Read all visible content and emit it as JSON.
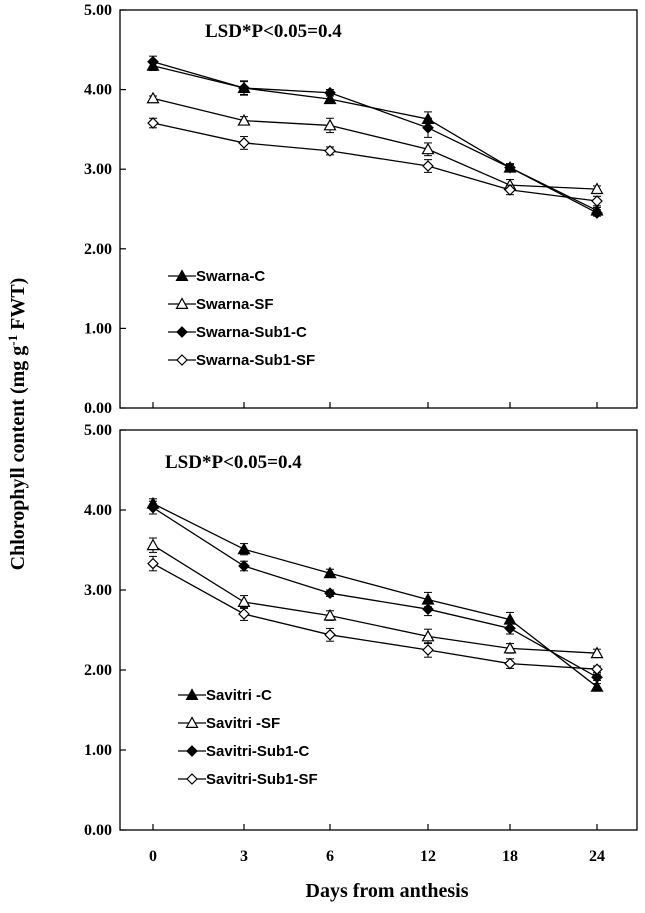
{
  "chart_data": {
    "type": "line",
    "ylabel": "Chlorophyll content (mg g-1 FWT)",
    "ylabel_parts": [
      "Chlorophyll content (mg g",
      "-1",
      " FWT)"
    ],
    "xlabel": "Days from anthesis",
    "x": [
      "0",
      "3",
      "6",
      "12",
      "18",
      "24"
    ],
    "yticks": [
      "0.00",
      "1.00",
      "2.00",
      "3.00",
      "4.00",
      "5.00"
    ],
    "ylim": [
      0,
      5
    ],
    "panels": [
      {
        "annotation": "LSD*P<0.05=0.4",
        "series": [
          {
            "name": "Swarna-C",
            "marker": "triangle-filled",
            "values": [
              4.3,
              4.02,
              3.88,
              3.63,
              3.02,
              2.48
            ],
            "errors": [
              0.06,
              0.09,
              0.04,
              0.09,
              0.04,
              0.04
            ]
          },
          {
            "name": "Swarna-SF",
            "marker": "triangle-open",
            "values": [
              3.89,
              3.61,
              3.55,
              3.25,
              2.8,
              2.75
            ],
            "errors": [
              0.03,
              0.05,
              0.09,
              0.08,
              0.07,
              0.04
            ]
          },
          {
            "name": "Swarna-Sub1-C",
            "marker": "diamond-filled",
            "values": [
              4.35,
              4.02,
              3.96,
              3.52,
              3.02,
              2.45
            ],
            "errors": [
              0.07,
              0.08,
              0.04,
              0.12,
              0.05,
              0.04
            ]
          },
          {
            "name": "Swarna-Sub1-SF",
            "marker": "diamond-open",
            "values": [
              3.58,
              3.33,
              3.23,
              3.04,
              2.74,
              2.6
            ],
            "errors": [
              0.06,
              0.08,
              0.05,
              0.08,
              0.06,
              0.06
            ]
          }
        ]
      },
      {
        "annotation": "LSD*P<0.05=0.4",
        "series": [
          {
            "name": "Savitri -C",
            "marker": "triangle-filled",
            "values": [
              4.08,
              3.51,
              3.21,
              2.88,
              2.63,
              1.79
            ],
            "errors": [
              0.06,
              0.07,
              0.05,
              0.09,
              0.09,
              0.04
            ]
          },
          {
            "name": "Savitri -SF",
            "marker": "triangle-open",
            "values": [
              3.56,
              2.85,
              2.68,
              2.42,
              2.27,
              2.21
            ],
            "errors": [
              0.09,
              0.08,
              0.06,
              0.09,
              0.06,
              0.05
            ]
          },
          {
            "name": "Savitri-Sub1-C",
            "marker": "diamond-filled",
            "values": [
              4.03,
              3.3,
              2.96,
              2.76,
              2.52,
              1.91
            ],
            "errors": [
              0.08,
              0.06,
              0.04,
              0.08,
              0.07,
              0.04
            ]
          },
          {
            "name": "Savitri-Sub1-SF",
            "marker": "diamond-open",
            "values": [
              3.33,
              2.7,
              2.44,
              2.25,
              2.08,
              2.01
            ],
            "errors": [
              0.09,
              0.08,
              0.08,
              0.09,
              0.06,
              0.04
            ]
          }
        ]
      }
    ],
    "legend_position": "bottom-left",
    "grid": false,
    "colors": {
      "line": "#000000",
      "marker": "#000000",
      "fill_open": "#ffffff"
    }
  }
}
